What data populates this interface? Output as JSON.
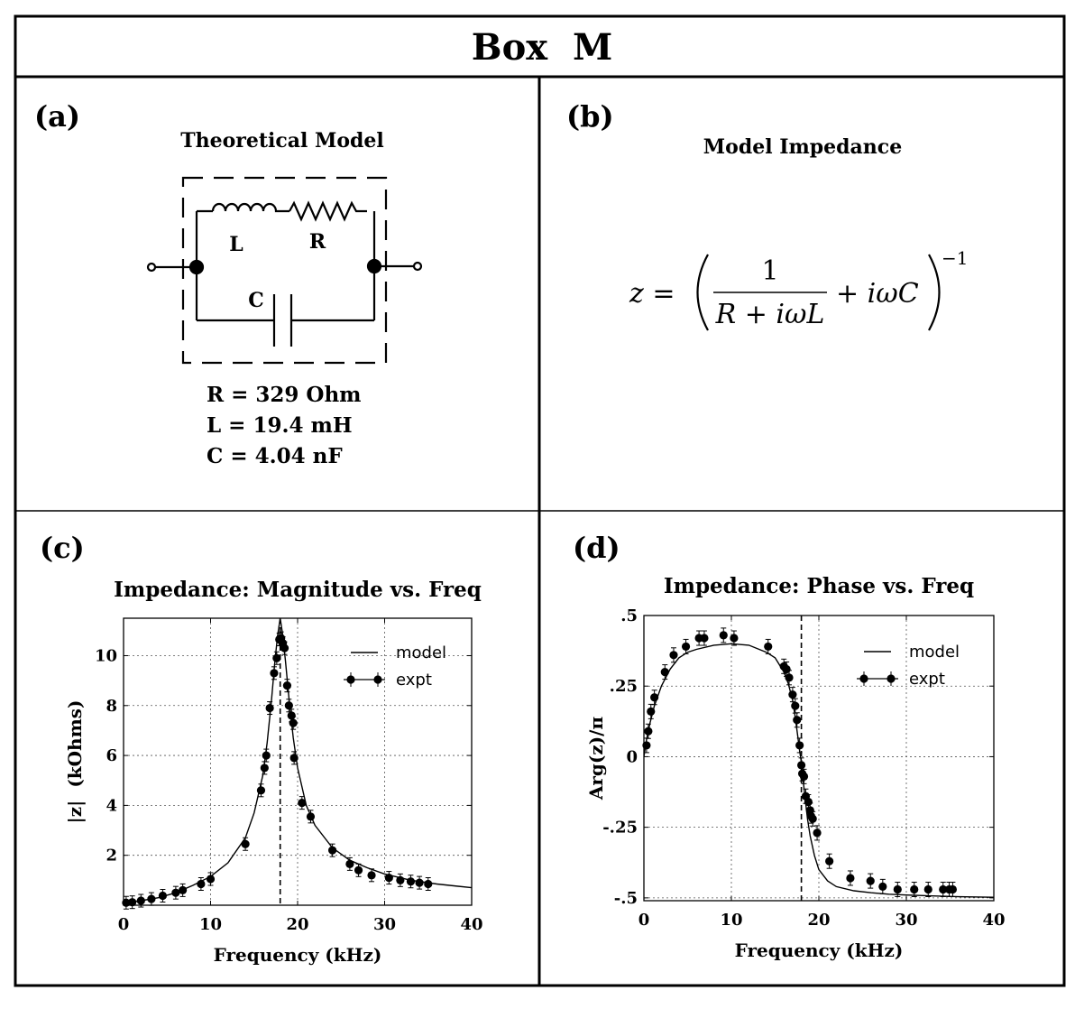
{
  "title": "Box  M",
  "panel_a": {
    "label": "(a)",
    "heading": "Theoretical Model",
    "components": {
      "L": "L",
      "R": "R",
      "C": "C"
    },
    "values": [
      "R = 329 Ohm",
      "L = 19.4 mH",
      "C = 4.04 nF"
    ]
  },
  "panel_b": {
    "label": "(b)",
    "heading": "Model Impedance",
    "formula": {
      "lhs": "z = ",
      "numerator": "1",
      "denominator": "R + iωL",
      "plus_term": "+ iωC",
      "exponent": "−1"
    }
  },
  "panel_c": {
    "label": "(c)"
  },
  "panel_d": {
    "label": "(d)"
  },
  "chart_data": [
    {
      "type": "line",
      "title": "Impedance: Magnitude vs. Freq",
      "xlabel": "Frequency (kHz)",
      "ylabel": "|z|  (kOhms)",
      "xlim": [
        0,
        40
      ],
      "ylim": [
        0,
        11.5
      ],
      "xticks": [
        0,
        10,
        20,
        30,
        40
      ],
      "xtick_labels": [
        "0",
        "10",
        "20",
        "30",
        "40"
      ],
      "yticks": [
        2,
        4,
        6,
        8,
        10
      ],
      "ytick_labels": [
        "2",
        "4",
        "6",
        "8",
        "10"
      ],
      "grid": true,
      "legend": "top-right",
      "vline_x": 18.0,
      "series": [
        {
          "name": "model",
          "kind": "line",
          "x": [
            0.2,
            2,
            4,
            6,
            8,
            10,
            12,
            14,
            15,
            16,
            16.5,
            17,
            17.4,
            17.7,
            18.0,
            18.3,
            18.6,
            19,
            19.5,
            20,
            21,
            22,
            24,
            26,
            28,
            30,
            33,
            36,
            40
          ],
          "y": [
            0.1,
            0.18,
            0.3,
            0.5,
            0.8,
            1.15,
            1.7,
            2.7,
            3.7,
            5.2,
            6.5,
            8.2,
            9.8,
            10.8,
            11.5,
            10.8,
            9.8,
            8.3,
            6.7,
            5.5,
            4.0,
            3.2,
            2.3,
            1.8,
            1.5,
            1.25,
            1.0,
            0.85,
            0.7
          ]
        },
        {
          "name": "expt",
          "kind": "points",
          "x": [
            0.3,
            1.0,
            2.0,
            3.2,
            4.5,
            6.0,
            6.8,
            8.9,
            10.0,
            14.0,
            15.8,
            16.2,
            16.4,
            16.8,
            17.3,
            17.6,
            17.9,
            18.1,
            18.3,
            18.5,
            18.8,
            19.0,
            19.3,
            19.5,
            19.6,
            20.5,
            21.5,
            24.0,
            26.0,
            27.0,
            28.5,
            30.5,
            31.8,
            33.0,
            34.0,
            35.0
          ],
          "y": [
            0.1,
            0.12,
            0.18,
            0.25,
            0.38,
            0.5,
            0.6,
            0.85,
            1.05,
            2.45,
            4.6,
            5.5,
            6.0,
            7.9,
            9.3,
            9.9,
            10.65,
            10.7,
            10.5,
            10.3,
            8.8,
            8.0,
            7.6,
            7.3,
            5.9,
            4.1,
            3.55,
            2.2,
            1.65,
            1.4,
            1.2,
            1.1,
            1.0,
            0.95,
            0.9,
            0.85
          ]
        }
      ]
    },
    {
      "type": "line",
      "title": "Impedance: Phase vs. Freq",
      "xlabel": "Frequency (kHz)",
      "ylabel": "Arg(z)/π",
      "xlim": [
        0,
        40
      ],
      "ylim": [
        -0.51,
        0.5
      ],
      "xticks": [
        0,
        10,
        20,
        30,
        40
      ],
      "xtick_labels": [
        "0",
        "10",
        "20",
        "30",
        "40"
      ],
      "yticks": [
        0.5,
        0.25,
        0,
        -0.25,
        -0.5
      ],
      "ytick_labels": [
        ".5",
        ".25",
        "0",
        "-.25",
        "-.5"
      ],
      "grid": true,
      "legend": "top-right",
      "vline_x": 18.0,
      "series": [
        {
          "name": "model",
          "kind": "line",
          "x": [
            0,
            0.3,
            0.7,
            1.2,
            2,
            3,
            4,
            5,
            6,
            8,
            10,
            12,
            14,
            15,
            16,
            16.5,
            17,
            17.3,
            17.6,
            17.8,
            18.0,
            18.2,
            18.4,
            18.7,
            19.0,
            19.5,
            20,
            21,
            22,
            24,
            26,
            28,
            30,
            33,
            36,
            40
          ],
          "y": [
            0,
            0.06,
            0.12,
            0.18,
            0.25,
            0.31,
            0.35,
            0.37,
            0.38,
            0.395,
            0.4,
            0.395,
            0.37,
            0.35,
            0.3,
            0.26,
            0.2,
            0.14,
            0.07,
            0.02,
            -0.02,
            -0.08,
            -0.14,
            -0.22,
            -0.28,
            -0.35,
            -0.4,
            -0.44,
            -0.46,
            -0.475,
            -0.482,
            -0.487,
            -0.49,
            -0.493,
            -0.496,
            -0.498
          ]
        },
        {
          "name": "expt",
          "kind": "points",
          "x": [
            0.3,
            0.5,
            0.8,
            1.2,
            2.4,
            3.4,
            4.8,
            6.3,
            6.9,
            9.1,
            10.3,
            14.2,
            16.0,
            16.3,
            16.6,
            17.0,
            17.3,
            17.5,
            17.8,
            18.0,
            18.1,
            18.3,
            18.5,
            18.8,
            19.0,
            19.1,
            19.3,
            19.8,
            21.2,
            23.6,
            25.9,
            27.3,
            29.0,
            30.9,
            32.5,
            34.2,
            34.9,
            35.3
          ],
          "y": [
            0.04,
            0.09,
            0.16,
            0.21,
            0.3,
            0.36,
            0.39,
            0.42,
            0.42,
            0.43,
            0.42,
            0.39,
            0.32,
            0.31,
            0.28,
            0.22,
            0.18,
            0.13,
            0.04,
            -0.03,
            -0.06,
            -0.07,
            -0.14,
            -0.16,
            -0.19,
            -0.21,
            -0.22,
            -0.27,
            -0.37,
            -0.43,
            -0.44,
            -0.46,
            -0.47,
            -0.47,
            -0.47,
            -0.47,
            -0.47,
            -0.47
          ]
        }
      ]
    }
  ]
}
